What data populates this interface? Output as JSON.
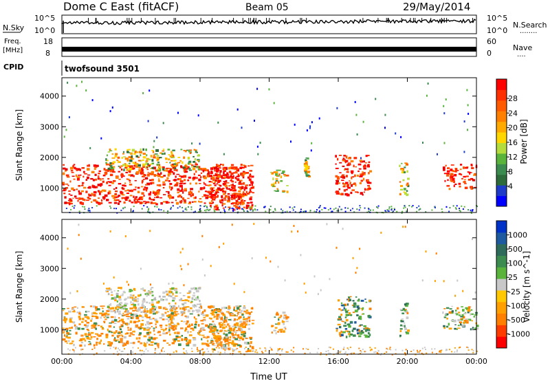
{
  "header": {
    "station": "Dome C East (fitACF)",
    "beam": "Beam 05",
    "date": "29/May/2014"
  },
  "nsky_panel": {
    "left_label": "N.Sky",
    "right_label": "N.Search",
    "tick_top": "10^5",
    "tick_bottom": "10^0",
    "right_dots": "........"
  },
  "freq_panel": {
    "label_line1": "Freq.",
    "label_line2": "[MHz]",
    "tick_top": "18",
    "tick_bottom": "8",
    "right_label": "Nave",
    "right_tick_top": "60",
    "right_tick_bottom": "0",
    "right_dots": "...."
  },
  "cpid": {
    "label": "CPID",
    "value": "twofsound 3501"
  },
  "chart_data": [
    {
      "type": "heatmap",
      "name": "power-panel",
      "ylabel": "Slant Range [km]",
      "yticks": [
        1000,
        2000,
        3000,
        4000
      ],
      "ylim": [
        200,
        4600
      ],
      "xlim": [
        0,
        24
      ],
      "xticks": [
        "00:00",
        "04:00",
        "08:00",
        "12:00",
        "16:00",
        "20:00",
        "00:00"
      ],
      "colorbar": {
        "label": "Power [dB]",
        "ticks": [
          "4",
          "8",
          "12",
          "16",
          "20",
          "24",
          "28"
        ],
        "colors": [
          "#0000ff",
          "#1e3cc8",
          "#2e6b3a",
          "#3c8c50",
          "#5ab43c",
          "#b4dc3c",
          "#ffd700",
          "#ffaa00",
          "#ff7f00",
          "#ff5a00",
          "#ff3000",
          "#ff0000"
        ]
      },
      "echo_regions": [
        {
          "t_start": 0.0,
          "t_end": 10.5,
          "r_min": 500,
          "r_max": 1800,
          "level": "strong"
        },
        {
          "t_start": 2.5,
          "t_end": 8.0,
          "r_min": 1600,
          "r_max": 2300,
          "level": "mid"
        },
        {
          "t_start": 8.5,
          "t_end": 11.0,
          "r_min": 300,
          "r_max": 1800,
          "level": "strong"
        },
        {
          "t_start": 12.0,
          "t_end": 13.0,
          "r_min": 900,
          "r_max": 1600,
          "level": "mid"
        },
        {
          "t_start": 14.0,
          "t_end": 14.3,
          "r_min": 1400,
          "r_max": 2000,
          "level": "mid"
        },
        {
          "t_start": 15.8,
          "t_end": 17.8,
          "r_min": 800,
          "r_max": 2100,
          "level": "strong"
        },
        {
          "t_start": 19.5,
          "t_end": 20.0,
          "r_min": 800,
          "r_max": 1900,
          "level": "mid"
        },
        {
          "t_start": 22.0,
          "t_end": 24.0,
          "r_min": 1000,
          "r_max": 1800,
          "level": "strong"
        }
      ]
    },
    {
      "type": "heatmap",
      "name": "velocity-panel",
      "ylabel": "Slant Range [km]",
      "yticks": [
        1000,
        2000,
        3000,
        4000
      ],
      "ylim": [
        200,
        4600
      ],
      "xlim": [
        0,
        24
      ],
      "xlabel": "Time UT",
      "xticks": [
        "00:00",
        "04:00",
        "08:00",
        "12:00",
        "16:00",
        "20:00",
        "00:00"
      ],
      "colorbar": {
        "label": "Velocity [m s^-1]",
        "ticks": [
          "1000",
          "500",
          "100",
          "25",
          "-25",
          "-100",
          "-500",
          "-1000"
        ],
        "colors": [
          "#ff0000",
          "#ff3c00",
          "#ff7f00",
          "#ffa000",
          "#ffc800",
          "#c8c8c8",
          "#5ab43c",
          "#3c8c50",
          "#2e6b5a",
          "#1e5aa0",
          "#0032c8"
        ]
      },
      "echo_regions": [
        {
          "t_start": 0.0,
          "t_end": 10.5,
          "r_min": 500,
          "r_max": 1800,
          "level": "toward"
        },
        {
          "t_start": 2.5,
          "t_end": 8.0,
          "r_min": 1600,
          "r_max": 2400,
          "level": "zero"
        },
        {
          "t_start": 8.5,
          "t_end": 11.0,
          "r_min": 300,
          "r_max": 1800,
          "level": "toward"
        },
        {
          "t_start": 12.0,
          "t_end": 13.0,
          "r_min": 900,
          "r_max": 1600,
          "level": "toward"
        },
        {
          "t_start": 15.8,
          "t_end": 17.8,
          "r_min": 800,
          "r_max": 2100,
          "level": "away"
        },
        {
          "t_start": 19.5,
          "t_end": 20.0,
          "r_min": 800,
          "r_max": 1900,
          "level": "mixed"
        },
        {
          "t_start": 22.0,
          "t_end": 24.0,
          "r_min": 1000,
          "r_max": 1800,
          "level": "mixed"
        }
      ]
    }
  ]
}
